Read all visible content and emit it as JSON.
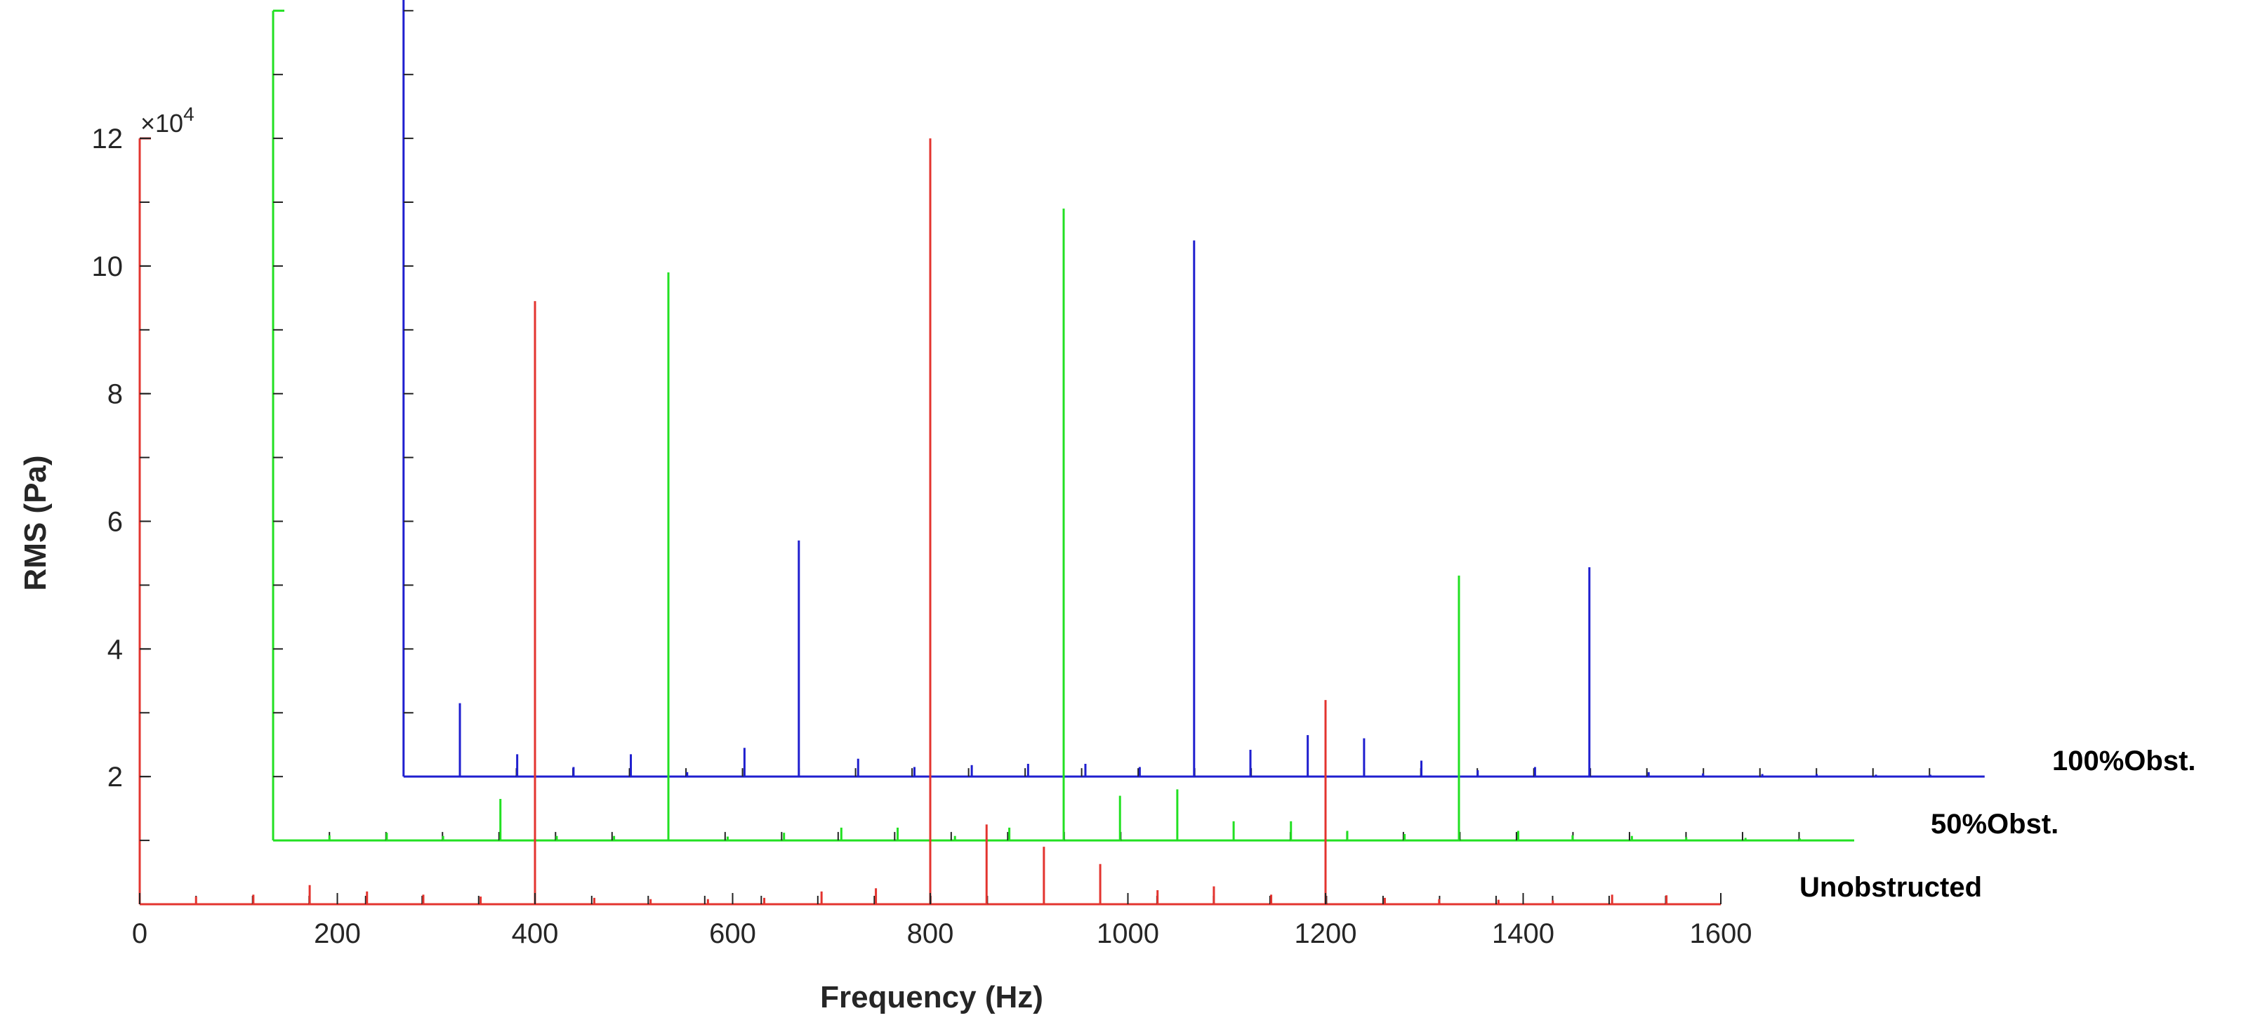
{
  "chart_data": {
    "type": "line",
    "subtype": "waterfall-spectrum",
    "title": "",
    "xlabel": "Frequency (Hz)",
    "ylabel": "RMS (Pa)",
    "y_exponent_label": "×10",
    "y_exponent_power": "4",
    "xlim": [
      0,
      1600
    ],
    "ylim": [
      0,
      130000
    ],
    "x_ticks": [
      "0",
      "200",
      "400",
      "600",
      "800",
      "1000",
      "1200",
      "1400",
      "1600"
    ],
    "y_ticks": [
      "2",
      "4",
      "6",
      "8",
      "10",
      "12"
    ],
    "y_tick_values": [
      20000,
      40000,
      60000,
      80000,
      100000,
      120000
    ],
    "grid": false,
    "legend": "none",
    "series": [
      {
        "name": "Unobstructed",
        "color": "#e3342f",
        "x_offset_hz": 0,
        "y_offset_pa": 0,
        "peaks": [
          [
            57,
            1200
          ],
          [
            115,
            1500
          ],
          [
            172,
            3000
          ],
          [
            230,
            2000
          ],
          [
            287,
            1500
          ],
          [
            345,
            1200
          ],
          [
            400,
            94500
          ],
          [
            460,
            1000
          ],
          [
            517,
            800
          ],
          [
            575,
            800
          ],
          [
            632,
            1000
          ],
          [
            690,
            2000
          ],
          [
            745,
            2500
          ],
          [
            800,
            120000
          ],
          [
            857,
            12500
          ],
          [
            915,
            9000
          ],
          [
            972,
            6300
          ],
          [
            1030,
            2200
          ],
          [
            1087,
            2800
          ],
          [
            1145,
            1500
          ],
          [
            1200,
            32000
          ],
          [
            1260,
            1000
          ],
          [
            1315,
            800
          ],
          [
            1375,
            700
          ],
          [
            1430,
            600
          ],
          [
            1490,
            1500
          ],
          [
            1545,
            1400
          ]
        ]
      },
      {
        "name": "50%Obst.",
        "color": "#22e022",
        "x_offset_hz": 135,
        "y_offset_pa": 10000,
        "peaks": [
          [
            57,
            800
          ],
          [
            115,
            1200
          ],
          [
            172,
            700
          ],
          [
            230,
            6500
          ],
          [
            287,
            700
          ],
          [
            345,
            700
          ],
          [
            400,
            89000
          ],
          [
            460,
            600
          ],
          [
            517,
            1200
          ],
          [
            575,
            2000
          ],
          [
            632,
            2000
          ],
          [
            690,
            700
          ],
          [
            745,
            2000
          ],
          [
            800,
            99000
          ],
          [
            857,
            7000
          ],
          [
            915,
            8000
          ],
          [
            972,
            3000
          ],
          [
            1030,
            3000
          ],
          [
            1087,
            1500
          ],
          [
            1145,
            1000
          ],
          [
            1200,
            41500
          ],
          [
            1260,
            1500
          ],
          [
            1315,
            800
          ],
          [
            1375,
            700
          ],
          [
            1430,
            500
          ],
          [
            1490,
            400
          ],
          [
            1545,
            300
          ]
        ]
      },
      {
        "name": "100%Obst.",
        "color": "#1f1fcf",
        "x_offset_hz": 267,
        "y_offset_pa": 20000,
        "peaks": [
          [
            57,
            11500
          ],
          [
            115,
            3500
          ],
          [
            172,
            1500
          ],
          [
            230,
            3500
          ],
          [
            287,
            700
          ],
          [
            345,
            4500
          ],
          [
            400,
            37000
          ],
          [
            460,
            2800
          ],
          [
            517,
            1500
          ],
          [
            575,
            1800
          ],
          [
            632,
            2000
          ],
          [
            690,
            2000
          ],
          [
            745,
            1500
          ],
          [
            800,
            84000
          ],
          [
            857,
            4200
          ],
          [
            915,
            6500
          ],
          [
            972,
            6000
          ],
          [
            1030,
            2500
          ],
          [
            1087,
            1000
          ],
          [
            1145,
            1500
          ],
          [
            1200,
            32800
          ],
          [
            1260,
            700
          ],
          [
            1315,
            500
          ],
          [
            1375,
            400
          ],
          [
            1430,
            400
          ],
          [
            1490,
            300
          ],
          [
            1545,
            300
          ]
        ]
      }
    ]
  }
}
